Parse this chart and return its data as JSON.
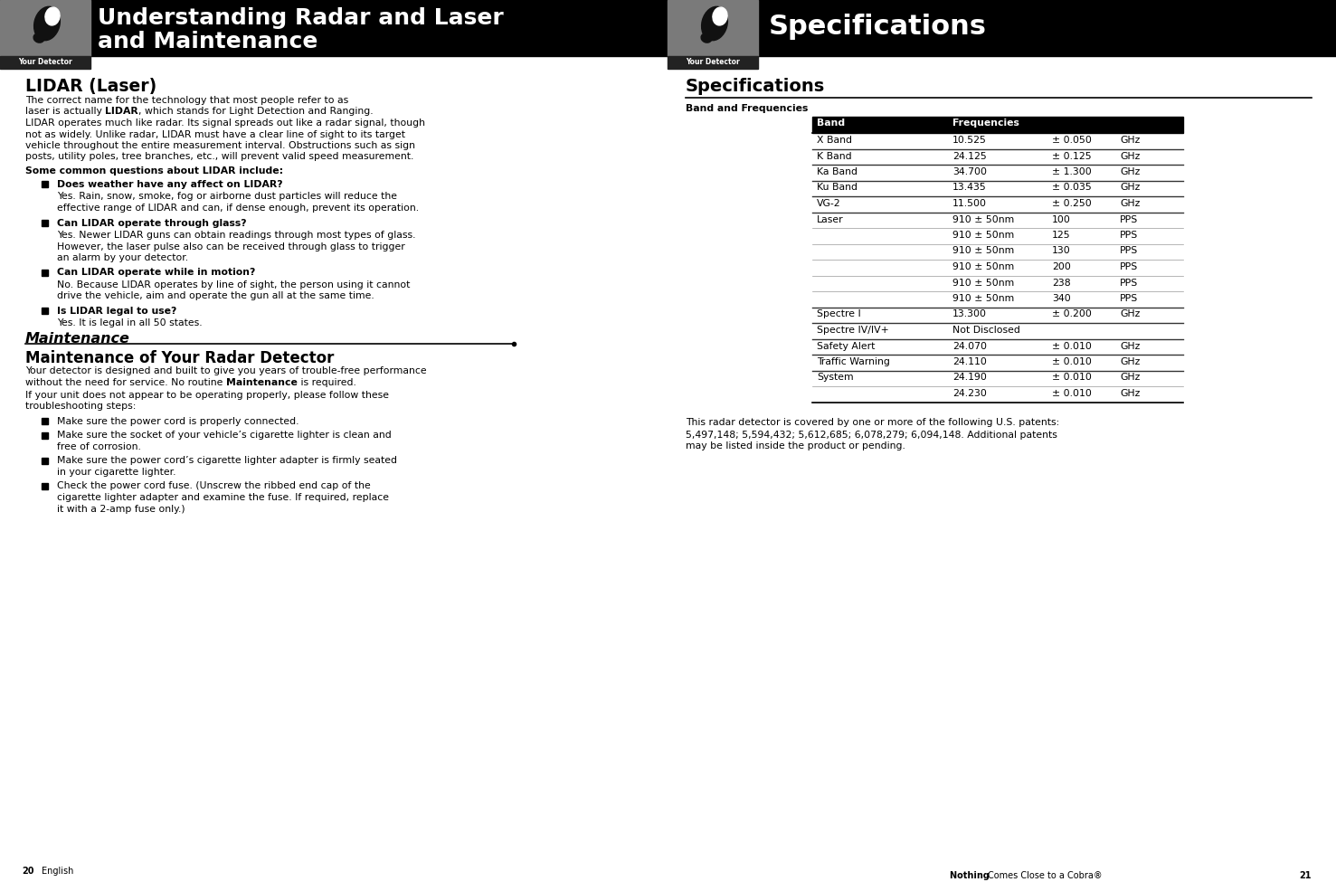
{
  "page_bg": "#ffffff",
  "header_bg": "#000000",
  "gray_block_color": "#7a7a7a",
  "left_header_line1": "Understanding Radar and Laser",
  "left_header_line2": "and Maintenance",
  "right_header_title": "Specifications",
  "subheader_label": "Your Detector",
  "figsize": [
    14.77,
    9.75
  ],
  "dpi": 100,
  "left_content": {
    "lidar_title": "LIDAR (Laser)",
    "lidar_intro1_lines": [
      "The correct name for the technology that most people refer to as",
      "laser is actually [b]LIDAR[/b], which stands for Light Detection and Ranging."
    ],
    "lidar_intro2_lines": [
      "LIDAR operates much like radar. Its signal spreads out like a radar signal, though",
      "not as widely. Unlike radar, LIDAR must have a clear line of sight to its target",
      "vehicle throughout the entire measurement interval. Obstructions such as sign",
      "posts, utility poles, tree branches, etc., will prevent valid speed measurement."
    ],
    "lidar_questions_label": "Some common questions about LIDAR include:",
    "lidar_questions": [
      {
        "q": "Does weather have any affect on LIDAR?",
        "a": [
          "Yes. Rain, snow, smoke, fog or airborne dust particles will reduce the",
          "effective range of LIDAR and can, if dense enough, prevent its operation."
        ]
      },
      {
        "q": "Can LIDAR operate through glass?",
        "a": [
          "Yes. Newer LIDAR guns can obtain readings through most types of glass.",
          "However, the laser pulse also can be received through glass to trigger",
          "an alarm by your detector."
        ]
      },
      {
        "q": "Can LIDAR operate while in motion?",
        "a": [
          "No. Because LIDAR operates by line of sight, the person using it cannot",
          "drive the vehicle, aim and operate the gun all at the same time."
        ]
      },
      {
        "q": "Is LIDAR legal to use?",
        "a": [
          "Yes. It is legal in all 50 states."
        ]
      }
    ],
    "maintenance_title": "Maintenance",
    "maintenance_subtitle": "Maintenance of Your Radar Detector",
    "maintenance_intro1": "Your detector is designed and built to give you years of trouble-free performance",
    "maintenance_intro2": "without the need for service. No routine [b]Maintenance[/b] is required.",
    "maintenance_intro3": "If your unit does not appear to be operating properly, please follow these",
    "maintenance_intro4": "troubleshooting steps:",
    "maintenance_steps": [
      [
        "Make sure the power cord is properly connected."
      ],
      [
        "Make sure the socket of your vehicle’s cigarette lighter is clean and",
        "free of corrosion."
      ],
      [
        "Make sure the power cord’s cigarette lighter adapter is firmly seated",
        "in your cigarette lighter."
      ],
      [
        "Check the power cord fuse. (Unscrew the ribbed end cap of the",
        "cigarette lighter adapter and examine the fuse. If required, replace",
        "it with a 2-amp fuse only.)"
      ]
    ],
    "page_num_left": "20",
    "page_label_left": "English"
  },
  "right_content": {
    "specs_title": "Specifications",
    "band_freq_label": "Band and Frequencies",
    "table_header": [
      "Band",
      "Frequencies"
    ],
    "table_header_bg": "#000000",
    "table_rows": [
      [
        "X Band",
        "10.525",
        "± 0.050",
        "GHz"
      ],
      [
        "K Band",
        "24.125",
        "± 0.125",
        "GHz"
      ],
      [
        "Ka Band",
        "34.700",
        "± 1.300",
        "GHz"
      ],
      [
        "Ku Band",
        "13.435",
        "± 0.035",
        "GHz"
      ],
      [
        "VG-2",
        "11.500",
        "± 0.250",
        "GHz"
      ],
      [
        "Laser",
        "910 ± 50nm",
        "100",
        "PPS"
      ],
      [
        "",
        "910 ± 50nm",
        "125",
        "PPS"
      ],
      [
        "",
        "910 ± 50nm",
        "130",
        "PPS"
      ],
      [
        "",
        "910 ± 50nm",
        "200",
        "PPS"
      ],
      [
        "",
        "910 ± 50nm",
        "238",
        "PPS"
      ],
      [
        "",
        "910 ± 50nm",
        "340",
        "PPS"
      ],
      [
        "Spectre I",
        "13.300",
        "± 0.200",
        "GHz"
      ],
      [
        "Spectre IV/IV+",
        "Not Disclosed",
        "",
        ""
      ],
      [
        "Safety Alert",
        "24.070",
        "± 0.010",
        "GHz"
      ],
      [
        "Traffic Warning",
        "24.110",
        "± 0.010",
        "GHz"
      ],
      [
        "System",
        "24.190",
        "± 0.010",
        "GHz"
      ],
      [
        "",
        "24.230",
        "± 0.010",
        "GHz"
      ]
    ],
    "patent_text": [
      "This radar detector is covered by one or more of the following U.S. patents:",
      "5,497,148; 5,594,432; 5,612,685; 6,078,279; 6,094,148. Additional patents",
      "may be listed inside the product or pending."
    ],
    "page_num_right": "21",
    "page_label_right": "Nothing Comes Close to a Cobra®"
  }
}
